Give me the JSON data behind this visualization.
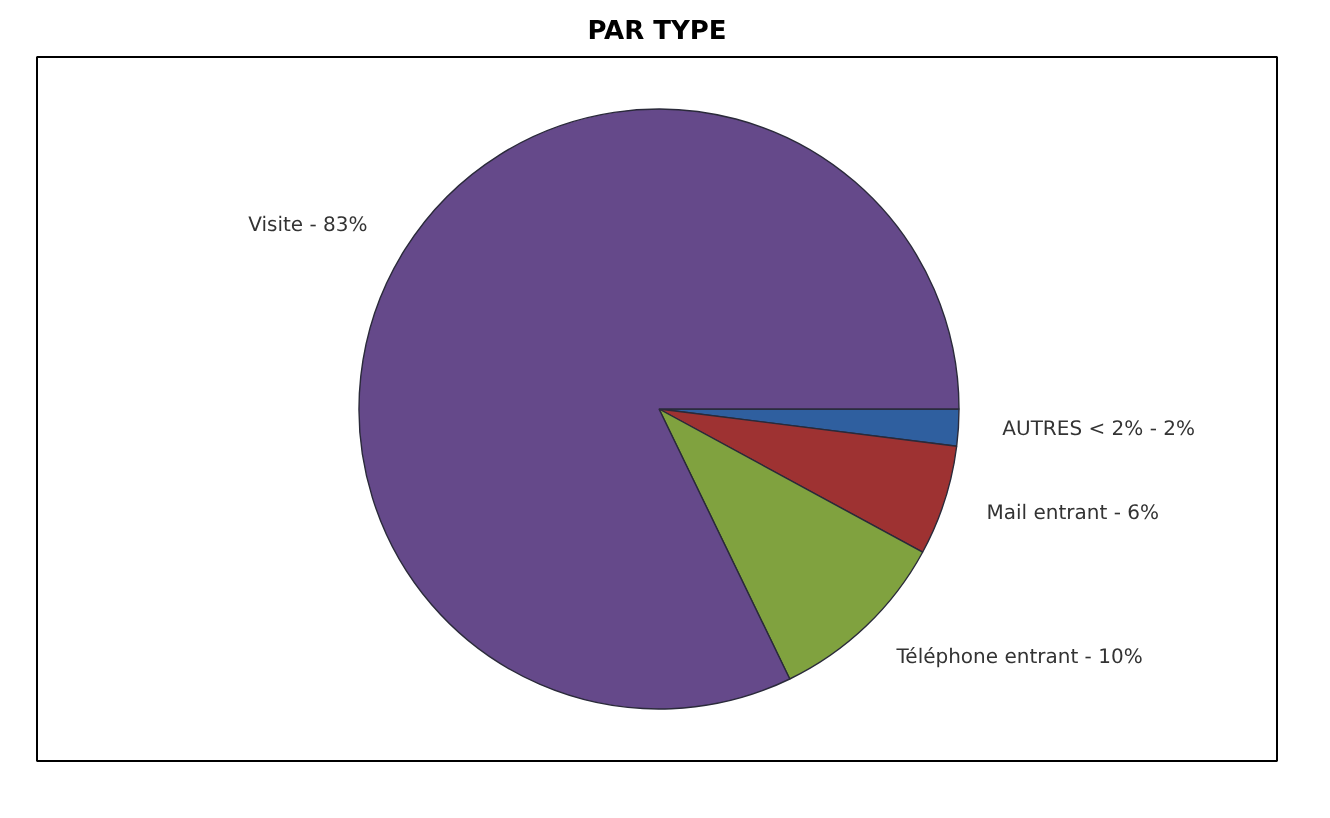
{
  "chart_data": {
    "type": "pie",
    "title": "PAR TYPE",
    "categories": [
      "AUTRES < 2% - 2%",
      "Mail entrant - 6%",
      "Téléphone entrant - 10%",
      "Visite - 83%"
    ],
    "values": [
      2,
      6,
      10,
      83
    ],
    "colors": [
      "#2f5f9f",
      "#9e3232",
      "#80a23f",
      "#65498a"
    ]
  }
}
